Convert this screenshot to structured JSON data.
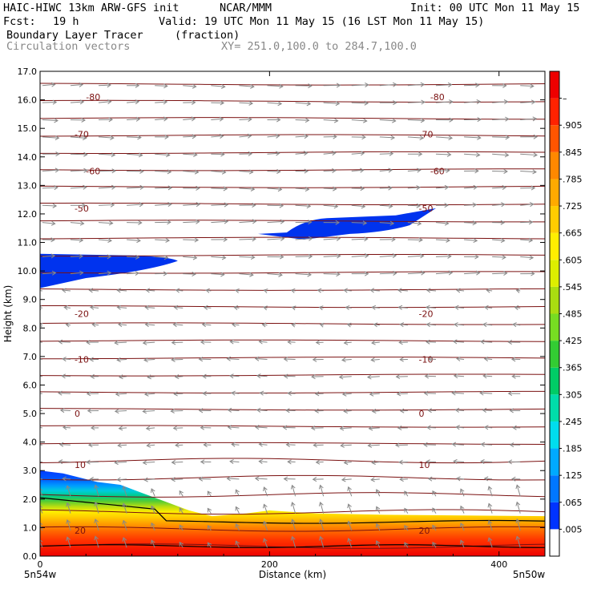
{
  "header": {
    "model": "HAIC-HIWC 13km ARW-GFS init",
    "center": "NCAR/MMM",
    "init": "Init: 00 UTC Mon 11 May 15",
    "fcst_label": "Fcst:",
    "fcst_value": "19 h",
    "valid": "Valid: 19 UTC Mon 11 May 15 (16 LST Mon 11 May 15)",
    "field": "Boundary Layer Tracer",
    "units": "(fraction)",
    "overlay": "Circulation vectors",
    "xy": "XY= 251.0,100.0 to 284.7,100.0"
  },
  "chart_data": {
    "type": "heatmap",
    "xlabel": "Distance (km)",
    "ylabel": "Height (km)",
    "xlim": [
      0,
      440
    ],
    "ylim": [
      0,
      17
    ],
    "x_ticks": [
      0,
      200,
      400
    ],
    "y_ticks": [
      0.0,
      1.0,
      2.0,
      3.0,
      4.0,
      5.0,
      6.0,
      7.0,
      8.0,
      9.0,
      10.0,
      11.0,
      12.0,
      13.0,
      14.0,
      15.0,
      16.0,
      17.0
    ],
    "endpoint_labels": [
      "5n54w",
      "5n50w"
    ],
    "colorbar": {
      "labels": [
        ".005",
        ".065",
        ".125",
        ".185",
        ".245",
        ".305",
        ".365",
        ".425",
        ".485",
        ".545",
        ".605",
        ".665",
        ".725",
        ".785",
        ".845",
        ".905",
        "–"
      ],
      "colors": [
        "#ffffff",
        "#0033ff",
        "#0077ff",
        "#00aaff",
        "#00ddee",
        "#00ddaa",
        "#00cc66",
        "#33cc33",
        "#77dd22",
        "#aadd11",
        "#ddee00",
        "#ffee00",
        "#ffcc00",
        "#ffaa00",
        "#ff8800",
        "#ff5500",
        "#ff2200",
        "#ee0000"
      ]
    },
    "temperature_contours": [
      {
        "label": "-80",
        "y": 16.1
      },
      {
        "label": "-70",
        "y": 14.8
      },
      {
        "label": "-60",
        "y": 13.5
      },
      {
        "label": "-50",
        "y": 12.2
      },
      {
        "label": "-20",
        "y": 8.5
      },
      {
        "label": "-10",
        "y": 6.9
      },
      {
        "label": "0",
        "y": 5.0
      },
      {
        "label": "10",
        "y": 3.2
      },
      {
        "label": "20",
        "y": 0.9
      }
    ],
    "tracer_regions": [
      {
        "name": "boundary-layer",
        "top_km": [
          [
            0,
            3.0
          ],
          [
            20,
            2.9
          ],
          [
            50,
            2.6
          ],
          [
            70,
            2.5
          ],
          [
            90,
            2.2
          ],
          [
            110,
            1.9
          ],
          [
            130,
            1.6
          ],
          [
            150,
            1.4
          ],
          [
            180,
            1.5
          ],
          [
            200,
            1.6
          ],
          [
            240,
            1.5
          ],
          [
            300,
            1.45
          ],
          [
            440,
            1.4
          ]
        ]
      },
      {
        "name": "upper-layer-1",
        "x_range": [
          0,
          120
        ],
        "y_range": [
          9.4,
          10.6
        ]
      },
      {
        "name": "upper-layer-2",
        "x_range": [
          190,
          345
        ],
        "y_range": [
          11.1,
          12.2
        ]
      }
    ],
    "wind_vectors": {
      "upper_direction": "eastward",
      "lower_direction": "westward"
    }
  }
}
